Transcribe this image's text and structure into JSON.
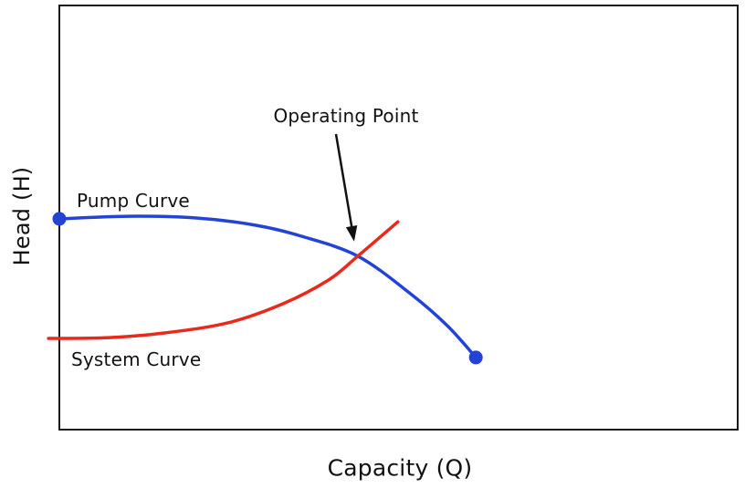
{
  "figure": {
    "background_color": "#ffffff",
    "border_color": "#1a1a1a",
    "text_color": "#111111"
  },
  "chart_data": {
    "type": "line",
    "title": "",
    "xlabel": "Capacity (Q)",
    "ylabel": "Head (H)",
    "xlim": [
      0,
      100
    ],
    "ylim": [
      0,
      100
    ],
    "grid": false,
    "legend_position": "inline-labels",
    "axes_ticks_visible": false,
    "series": [
      {
        "name": "Pump Curve",
        "color": "#2343d7",
        "line_width": 3.5,
        "endpoint_markers": true,
        "marker_color": "#2343d7",
        "x": [
          0,
          10.1,
          20.2,
          28.9,
          35.7,
          44.0,
          51.8,
          57.2,
          61.4
        ],
        "y": [
          49.7,
          50.3,
          49.9,
          48.2,
          45.6,
          40.9,
          32.0,
          24.5,
          17.0
        ]
      },
      {
        "name": "System Curve",
        "color": "#e9291b",
        "line_width": 3.5,
        "endpoint_markers": false,
        "x": [
          -1.6,
          7.4,
          15.5,
          24.9,
          33.0,
          39.7,
          44.0,
          49.9
        ],
        "y": [
          21.5,
          21.7,
          22.8,
          25.2,
          29.7,
          35.3,
          40.9,
          49.0
        ]
      }
    ],
    "operating_point": {
      "x": 44.0,
      "y": 40.9,
      "label": "Operating Point",
      "arrow_color": "#111111"
    }
  }
}
